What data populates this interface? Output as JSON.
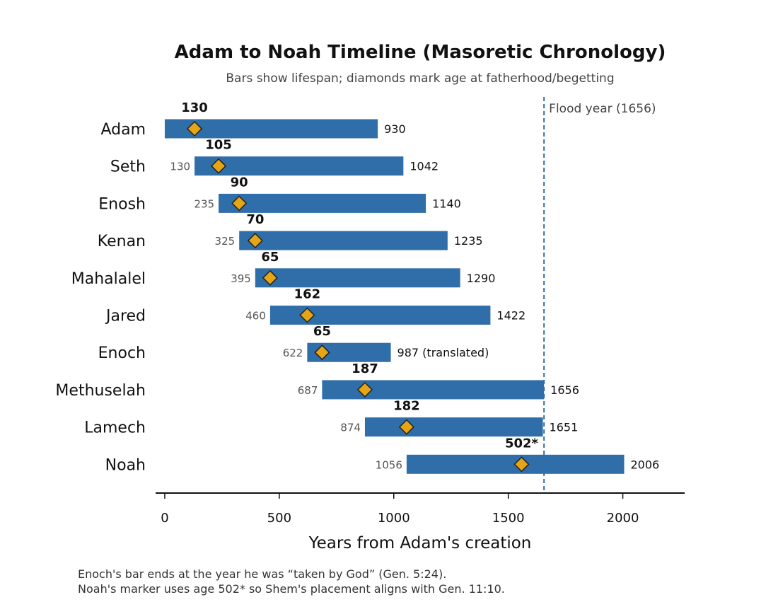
{
  "colors": {
    "bar": "#2f6ea9",
    "marker_fill": "#e5a514",
    "marker_stroke": "#222222",
    "flood_line": "#2f6ea9"
  },
  "chart_data": {
    "type": "bar",
    "orientation": "horizontal-range",
    "title": "Adam to Noah Timeline (Masoretic Chronology)",
    "subtitle": "Bars show lifespan; diamonds mark age at fatherhood/begetting",
    "xlabel": "Years from Adam's creation",
    "xlim": [
      -40,
      2270
    ],
    "xticks": [
      0,
      500,
      1000,
      1500,
      2000
    ],
    "xtick_labels": [
      "0",
      "500",
      "1000",
      "1500",
      "2000"
    ],
    "grid": false,
    "flood": {
      "year": 1656,
      "label": "Flood year (1656)"
    },
    "people": [
      {
        "name": "Adam",
        "start": 0,
        "end": 930,
        "start_label": "",
        "end_label": "930",
        "age": 130,
        "age_label": "130"
      },
      {
        "name": "Seth",
        "start": 130,
        "end": 1042,
        "start_label": "130",
        "end_label": "1042",
        "age": 105,
        "age_label": "105"
      },
      {
        "name": "Enosh",
        "start": 235,
        "end": 1140,
        "start_label": "235",
        "end_label": "1140",
        "age": 90,
        "age_label": "90"
      },
      {
        "name": "Kenan",
        "start": 325,
        "end": 1235,
        "start_label": "325",
        "end_label": "1235",
        "age": 70,
        "age_label": "70"
      },
      {
        "name": "Mahalalel",
        "start": 395,
        "end": 1290,
        "start_label": "395",
        "end_label": "1290",
        "age": 65,
        "age_label": "65"
      },
      {
        "name": "Jared",
        "start": 460,
        "end": 1422,
        "start_label": "460",
        "end_label": "1422",
        "age": 162,
        "age_label": "162"
      },
      {
        "name": "Enoch",
        "start": 622,
        "end": 987,
        "start_label": "622",
        "end_label": "987 (translated)",
        "age": 65,
        "age_label": "65"
      },
      {
        "name": "Methuselah",
        "start": 687,
        "end": 1656,
        "start_label": "687",
        "end_label": "1656",
        "age": 187,
        "age_label": "187"
      },
      {
        "name": "Lamech",
        "start": 874,
        "end": 1651,
        "start_label": "874",
        "end_label": "1651",
        "age": 182,
        "age_label": "182"
      },
      {
        "name": "Noah",
        "start": 1056,
        "end": 2006,
        "start_label": "1056",
        "end_label": "2006",
        "age": 502,
        "age_label": "502*"
      }
    ]
  },
  "footnotes": [
    "Enoch's bar ends at the year he was “taken by God” (Gen. 5:24).",
    "Noah's marker uses age 502* so Shem's placement aligns with Gen. 11:10."
  ]
}
